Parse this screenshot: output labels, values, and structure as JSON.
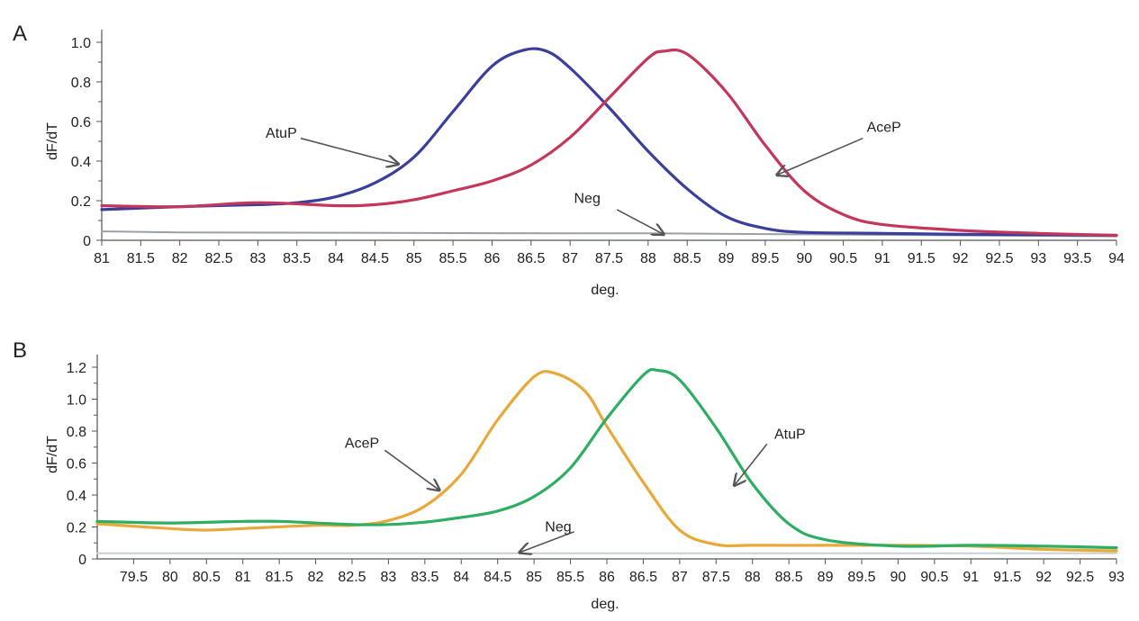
{
  "chart_data": [
    {
      "panel_label": "A",
      "type": "line",
      "title": "",
      "xlabel": "deg.",
      "ylabel": "dF/dT",
      "xlim": [
        81,
        94
      ],
      "ylim": [
        0,
        1.0
      ],
      "xticks": [
        "81",
        "81.5",
        "82",
        "82.5",
        "83",
        "83.5",
        "84",
        "84.5",
        "85",
        "85.5",
        "86",
        "86.5",
        "87",
        "87.5",
        "88",
        "88.5",
        "89",
        "89.5",
        "90",
        "90.5",
        "91",
        "91.5",
        "92",
        "92.5",
        "93",
        "93.5",
        "94"
      ],
      "yticks": [
        "0",
        "0.2",
        "0.4",
        "0.6",
        "0.8",
        "1.0"
      ],
      "grid": false,
      "series": [
        {
          "name": "AtuP",
          "color": "#3a3f9c",
          "x": [
            81,
            82,
            83,
            83.5,
            84,
            84.5,
            85,
            85.5,
            86,
            86.4,
            86.7,
            87,
            87.5,
            88,
            88.5,
            89,
            89.5,
            90,
            91,
            92,
            93,
            94
          ],
          "y": [
            0.155,
            0.17,
            0.18,
            0.19,
            0.22,
            0.29,
            0.42,
            0.65,
            0.88,
            0.96,
            0.955,
            0.87,
            0.67,
            0.45,
            0.26,
            0.12,
            0.06,
            0.04,
            0.035,
            0.03,
            0.028,
            0.025
          ]
        },
        {
          "name": "AceP",
          "color": "#c4365a",
          "x": [
            81,
            82,
            83,
            84,
            84.5,
            85,
            85.5,
            86,
            86.5,
            87,
            87.5,
            88,
            88.2,
            88.5,
            89,
            89.5,
            90,
            90.5,
            91,
            92,
            93,
            94
          ],
          "y": [
            0.175,
            0.17,
            0.19,
            0.175,
            0.18,
            0.205,
            0.25,
            0.3,
            0.38,
            0.52,
            0.72,
            0.92,
            0.955,
            0.94,
            0.75,
            0.48,
            0.25,
            0.13,
            0.08,
            0.05,
            0.035,
            0.025
          ]
        },
        {
          "name": "Neg",
          "color": "#9aa0a8",
          "x": [
            81,
            82,
            84,
            86,
            88,
            90,
            92,
            94
          ],
          "y": [
            0.045,
            0.04,
            0.038,
            0.036,
            0.035,
            0.03,
            0.025,
            0.02
          ]
        }
      ],
      "annotations": [
        {
          "text": "AtuP",
          "text_x": 83.1,
          "text_y": 0.545,
          "arrow_from_x": 83.55,
          "arrow_from_y": 0.515,
          "arrow_to_x": 84.8,
          "arrow_to_y": 0.385
        },
        {
          "text": "AceP",
          "text_x": 90.8,
          "text_y": 0.575,
          "arrow_from_x": 90.75,
          "arrow_from_y": 0.515,
          "arrow_to_x": 89.65,
          "arrow_to_y": 0.33
        },
        {
          "text": "Neg",
          "text_x": 87.05,
          "text_y": 0.215,
          "arrow_from_x": 87.6,
          "arrow_from_y": 0.155,
          "arrow_to_x": 88.2,
          "arrow_to_y": 0.03
        }
      ]
    },
    {
      "panel_label": "B",
      "type": "line",
      "title": "",
      "xlabel": "deg.",
      "ylabel": "dF/dT",
      "xlim": [
        79,
        93
      ],
      "ylim": [
        0,
        1.2
      ],
      "xticks": [
        "79.5",
        "80",
        "80.5",
        "81",
        "81.5",
        "82",
        "82.5",
        "83",
        "83.5",
        "84",
        "84.5",
        "85",
        "85.5",
        "86",
        "86.5",
        "87",
        "87.5",
        "88",
        "88.5",
        "89",
        "89.5",
        "90",
        "90.5",
        "91",
        "91.5",
        "92",
        "92.5",
        "93"
      ],
      "yticks": [
        "0",
        "0.2",
        "0.4",
        "0.6",
        "0.8",
        "1.0",
        "1.2"
      ],
      "grid": false,
      "series": [
        {
          "name": "AceP",
          "color": "#e8a93a",
          "x": [
            79,
            80,
            80.5,
            81,
            82,
            82.5,
            83,
            83.5,
            84,
            84.5,
            85,
            85.3,
            85.7,
            86,
            86.5,
            87,
            87.5,
            88,
            89,
            90,
            91,
            92,
            93
          ],
          "y": [
            0.22,
            0.19,
            0.18,
            0.19,
            0.21,
            0.21,
            0.24,
            0.33,
            0.53,
            0.87,
            1.14,
            1.16,
            1.05,
            0.83,
            0.48,
            0.18,
            0.09,
            0.085,
            0.085,
            0.085,
            0.08,
            0.06,
            0.05
          ]
        },
        {
          "name": "AtuP",
          "color": "#2eae63",
          "x": [
            79,
            80,
            81,
            81.5,
            82,
            82.5,
            83,
            83.5,
            84,
            84.5,
            85,
            85.5,
            86,
            86.5,
            86.7,
            87,
            87.5,
            88,
            88.5,
            89,
            90,
            91,
            92,
            93
          ],
          "y": [
            0.235,
            0.225,
            0.235,
            0.235,
            0.225,
            0.215,
            0.215,
            0.23,
            0.26,
            0.3,
            0.39,
            0.57,
            0.88,
            1.15,
            1.18,
            1.12,
            0.82,
            0.47,
            0.22,
            0.12,
            0.08,
            0.085,
            0.08,
            0.07
          ]
        },
        {
          "name": "Neg",
          "color": "#c8d0d6",
          "x": [
            79,
            81,
            83,
            85,
            87,
            89,
            91,
            93
          ],
          "y": [
            0.035,
            0.035,
            0.035,
            0.035,
            0.035,
            0.035,
            0.035,
            0.035
          ]
        }
      ],
      "annotations": [
        {
          "text": "AceP",
          "text_x": 82.4,
          "text_y": 0.73,
          "arrow_from_x": 82.95,
          "arrow_from_y": 0.68,
          "arrow_to_x": 83.7,
          "arrow_to_y": 0.43
        },
        {
          "text": "AtuP",
          "text_x": 88.3,
          "text_y": 0.785,
          "arrow_from_x": 88.2,
          "arrow_from_y": 0.72,
          "arrow_to_x": 87.75,
          "arrow_to_y": 0.46
        },
        {
          "text": "Neg",
          "text_x": 85.15,
          "text_y": 0.205,
          "arrow_from_x": 85.55,
          "arrow_from_y": 0.17,
          "arrow_to_x": 84.8,
          "arrow_to_y": 0.04
        }
      ]
    }
  ]
}
